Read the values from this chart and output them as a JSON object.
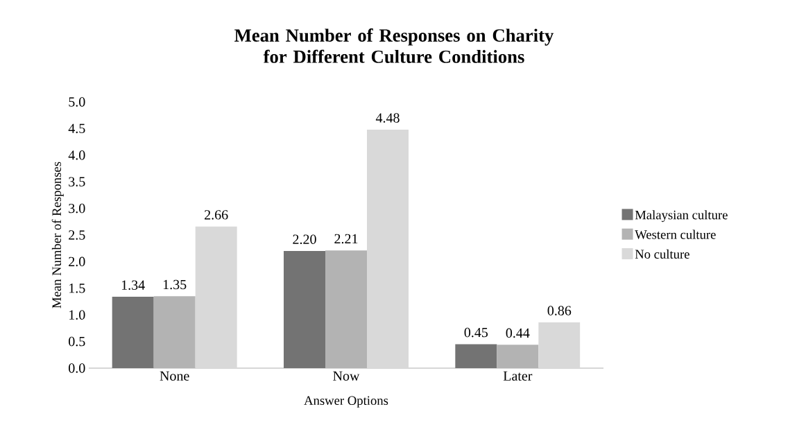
{
  "chart_data": {
    "type": "bar",
    "title": "Mean Number of Responses on Charity for Different Culture Conditions",
    "xlabel": "Answer Options",
    "ylabel": "Mean Number of Responses",
    "categories": [
      "None",
      "Now",
      "Later"
    ],
    "series": [
      {
        "name": "Malaysian culture",
        "color": "#737373",
        "values": [
          1.34,
          2.2,
          0.45
        ],
        "value_labels": [
          "1.34",
          "2.20",
          "0.45"
        ]
      },
      {
        "name": "Western culture",
        "color": "#b3b3b3",
        "values": [
          1.35,
          2.21,
          0.44
        ],
        "value_labels": [
          "1.35",
          "2.21",
          "0.44"
        ]
      },
      {
        "name": "No culture",
        "color": "#d9d9d9",
        "values": [
          2.66,
          4.48,
          0.86
        ],
        "value_labels": [
          "2.66",
          "4.48",
          "0.86"
        ]
      }
    ],
    "ylim": [
      0,
      5
    ],
    "yticks": [
      {
        "value": 0,
        "label": "0.0"
      },
      {
        "value": 0.5,
        "label": "0.5"
      },
      {
        "value": 1,
        "label": "1.0"
      },
      {
        "value": 1.5,
        "label": "1.5"
      },
      {
        "value": 2,
        "label": "2.0"
      },
      {
        "value": 2.5,
        "label": "2.5"
      },
      {
        "value": 3,
        "label": "3.0"
      },
      {
        "value": 3.5,
        "label": "3.5"
      },
      {
        "value": 4,
        "label": "4.0"
      },
      {
        "value": 4.5,
        "label": "4.5"
      },
      {
        "value": 5,
        "label": "5.0"
      }
    ],
    "grid": false,
    "legend": "right"
  }
}
